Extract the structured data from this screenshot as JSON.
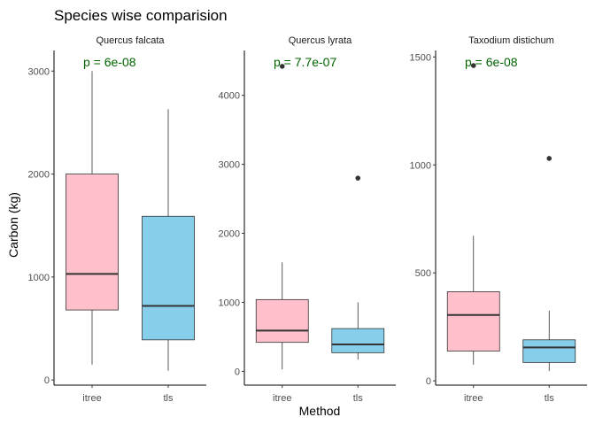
{
  "title": "Species wise comparision",
  "xlabel": "Method",
  "ylabel": "Carbon (kg)",
  "colors": {
    "itree": "#FFC0CB",
    "tls": "#87CEEB",
    "pvalue": "#006400",
    "outline": "#333333"
  },
  "chart_data": [
    {
      "type": "box",
      "title": "Quercus falcata",
      "p_label": "p = 6e-08",
      "categories": [
        "itree",
        "tls"
      ],
      "ylim": [
        -50,
        3200
      ],
      "yticks": [
        0,
        1000,
        2000,
        3000
      ],
      "ytick_labels": [
        "0",
        "1000",
        "2000",
        "3000"
      ],
      "boxes": [
        {
          "name": "itree",
          "min": 150,
          "q1": 680,
          "median": 1030,
          "q3": 2000,
          "max": 3000,
          "outliers": []
        },
        {
          "name": "tls",
          "min": 90,
          "q1": 390,
          "median": 720,
          "q3": 1590,
          "max": 2630,
          "outliers": []
        }
      ]
    },
    {
      "type": "box",
      "title": "Quercus lyrata",
      "p_label": "p = 7.7e-07",
      "categories": [
        "itree",
        "tls"
      ],
      "ylim": [
        -200,
        4650
      ],
      "yticks": [
        0,
        1000,
        2000,
        3000,
        4000
      ],
      "ytick_labels": [
        "0",
        "1000",
        "2000",
        "3000",
        "4000"
      ],
      "boxes": [
        {
          "name": "itree",
          "min": 30,
          "q1": 420,
          "median": 590,
          "q3": 1040,
          "max": 1580,
          "outliers": [
            4420
          ]
        },
        {
          "name": "tls",
          "min": 170,
          "q1": 270,
          "median": 390,
          "q3": 620,
          "max": 1000,
          "outliers": [
            2800
          ]
        }
      ]
    },
    {
      "type": "box",
      "title": "Taxodium distichum",
      "p_label": "p = 6e-08",
      "categories": [
        "itree",
        "tls"
      ],
      "ylim": [
        -20,
        1530
      ],
      "yticks": [
        0,
        500,
        1000,
        1500
      ],
      "ytick_labels": [
        "0",
        "500",
        "1000",
        "1500"
      ],
      "boxes": [
        {
          "name": "itree",
          "min": 75,
          "q1": 138,
          "median": 305,
          "q3": 413,
          "max": 672,
          "outliers": [
            1460
          ]
        },
        {
          "name": "tls",
          "min": 45,
          "q1": 85,
          "median": 155,
          "q3": 190,
          "max": 325,
          "outliers": [
            1030
          ]
        }
      ]
    }
  ]
}
